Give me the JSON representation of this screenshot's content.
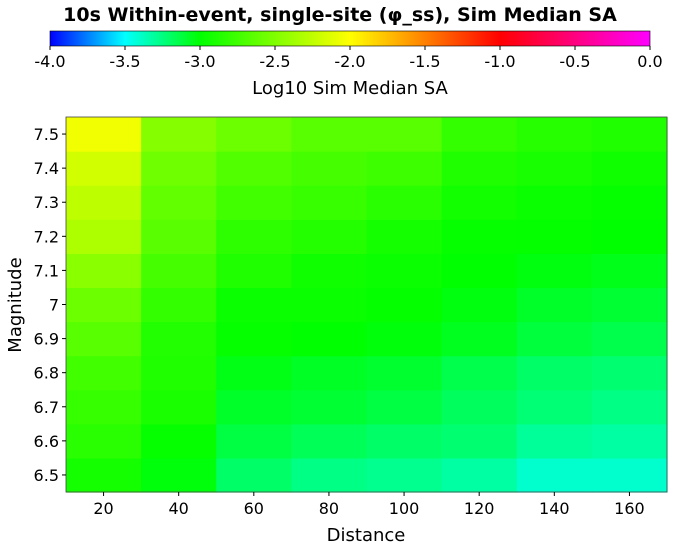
{
  "chart_data": {
    "type": "heatmap",
    "title": "10s Within-event, single-site (φ_ss), Sim Median SA",
    "xlabel": "Distance",
    "ylabel": "Magnitude",
    "x": [
      20,
      40,
      60,
      80,
      100,
      120,
      140,
      160
    ],
    "y": [
      6.5,
      6.6,
      6.7,
      6.8,
      6.9,
      7.0,
      7.1,
      7.2,
      7.3,
      7.4,
      7.5
    ],
    "x_ticks": [
      "20",
      "40",
      "60",
      "80",
      "100",
      "120",
      "140",
      "160"
    ],
    "y_ticks": [
      "6.5",
      "6.6",
      "6.7",
      "6.8",
      "6.9",
      "7",
      "7.1",
      "7.2",
      "7.3",
      "7.4",
      "7.5"
    ],
    "xlim": [
      10,
      170
    ],
    "ylim": [
      6.45,
      7.55
    ],
    "colorbar": {
      "label": "Log10 Sim Median SA",
      "range": [
        -4.0,
        0.0
      ],
      "ticks": [
        "-4.0",
        "-3.5",
        "-3.0",
        "-2.5",
        "-2.0",
        "-1.5",
        "-1.0",
        "-0.5",
        "0.0"
      ],
      "position": "top",
      "stops": [
        {
          "v": -4.0,
          "color": "#0000ff"
        },
        {
          "v": -3.5,
          "color": "#00ffff"
        },
        {
          "v": -3.0,
          "color": "#00ff00"
        },
        {
          "v": -2.0,
          "color": "#ffff00"
        },
        {
          "v": -1.5,
          "color": "#ff8000"
        },
        {
          "v": -1.0,
          "color": "#ff0000"
        },
        {
          "v": 0.0,
          "color": "#ff00ff"
        }
      ]
    },
    "z": [
      [
        -2.92,
        -3.02,
        -3.2,
        -3.26,
        -3.28,
        -3.32,
        -3.4,
        -3.4
      ],
      [
        -2.84,
        -2.98,
        -3.13,
        -3.17,
        -3.2,
        -3.22,
        -3.3,
        -3.32
      ],
      [
        -2.79,
        -2.9,
        -3.08,
        -3.1,
        -3.13,
        -3.18,
        -3.23,
        -3.26
      ],
      [
        -2.74,
        -2.88,
        -3.04,
        -3.07,
        -3.09,
        -3.15,
        -3.2,
        -3.22
      ],
      [
        -2.66,
        -2.87,
        -2.98,
        -3.0,
        -3.02,
        -3.06,
        -3.12,
        -3.15
      ],
      [
        -2.58,
        -2.8,
        -2.96,
        -2.96,
        -2.99,
        -3.03,
        -3.08,
        -3.1
      ],
      [
        -2.46,
        -2.73,
        -2.88,
        -2.94,
        -2.96,
        -3.0,
        -3.03,
        -3.05
      ],
      [
        -2.32,
        -2.65,
        -2.82,
        -2.86,
        -2.92,
        -2.98,
        -2.99,
        -3.0
      ],
      [
        -2.26,
        -2.62,
        -2.74,
        -2.78,
        -2.84,
        -2.93,
        -2.96,
        -2.98
      ],
      [
        -2.18,
        -2.56,
        -2.68,
        -2.73,
        -2.76,
        -2.88,
        -2.91,
        -2.94
      ],
      [
        -2.05,
        -2.48,
        -2.58,
        -2.66,
        -2.66,
        -2.8,
        -2.85,
        -2.88
      ]
    ]
  }
}
